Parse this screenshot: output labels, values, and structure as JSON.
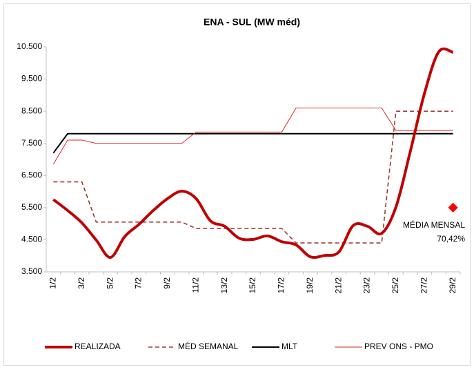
{
  "chart_data": {
    "type": "line",
    "title": "ENA - SUL (MW méd)",
    "categories": [
      "1/2",
      null,
      "3/2",
      null,
      "5/2",
      null,
      "7/2",
      null,
      "9/2",
      null,
      "11/2",
      null,
      "13/2",
      null,
      "15/2",
      null,
      "17/2",
      null,
      "19/2",
      null,
      "21/2",
      null,
      "23/2",
      null,
      "25/2",
      null,
      "27/2",
      null,
      "29/2"
    ],
    "series": [
      {
        "name": "REALIZADA",
        "color": "#c00000",
        "style": "thick",
        "values": [
          5750,
          5410,
          5025,
          4490,
          3950,
          4600,
          4980,
          5410,
          5780,
          6010,
          5780,
          5090,
          4920,
          4550,
          4510,
          4620,
          4440,
          4340,
          3970,
          4010,
          4120,
          4940,
          4920,
          4700,
          5520,
          7240,
          9060,
          10350,
          10330
        ]
      },
      {
        "name": "MÉD SEMANAL",
        "color": "#9e3a3a",
        "style": "dashed",
        "values": [
          6300,
          6300,
          6300,
          5050,
          5050,
          5050,
          5050,
          5050,
          5050,
          5050,
          4850,
          4850,
          4850,
          4850,
          4850,
          4850,
          4850,
          4400,
          4400,
          4400,
          4400,
          4400,
          4400,
          4400,
          8500,
          8500,
          8500,
          8500,
          8500
        ]
      },
      {
        "name": "MLT",
        "color": "#000000",
        "style": "solid",
        "values": [
          7200,
          7800,
          7800,
          7800,
          7800,
          7800,
          7800,
          7800,
          7800,
          7800,
          7800,
          7800,
          7800,
          7800,
          7800,
          7800,
          7800,
          7800,
          7800,
          7800,
          7800,
          7800,
          7800,
          7800,
          7800,
          7800,
          7800,
          7800,
          7800
        ]
      },
      {
        "name": "PREV ONS - PMO",
        "color": "#e02020",
        "style": "thin",
        "values": [
          6850,
          7600,
          7600,
          7500,
          7500,
          7500,
          7500,
          7500,
          7500,
          7500,
          7850,
          7850,
          7850,
          7850,
          7850,
          7850,
          7850,
          8600,
          8600,
          8600,
          8600,
          8600,
          8600,
          8600,
          7900,
          7900,
          7900,
          7900,
          7900
        ]
      }
    ],
    "marker": {
      "color": "#ff0000",
      "index": 28,
      "value": 5500,
      "lines": [
        "MÉDIA MENSAL",
        "70,42%"
      ]
    },
    "ylim": [
      3500,
      10500
    ],
    "yticks": [
      {
        "value": 3500,
        "label": "3.500"
      },
      {
        "value": 4500,
        "label": "4.500"
      },
      {
        "value": 5500,
        "label": "5.500"
      },
      {
        "value": 6500,
        "label": "6.500"
      },
      {
        "value": 7500,
        "label": "7.500"
      },
      {
        "value": 8500,
        "label": "8.500"
      },
      {
        "value": 9500,
        "label": "9.500"
      },
      {
        "value": 10500,
        "label": "10.500"
      }
    ],
    "grid": false,
    "legend": "bottom"
  }
}
